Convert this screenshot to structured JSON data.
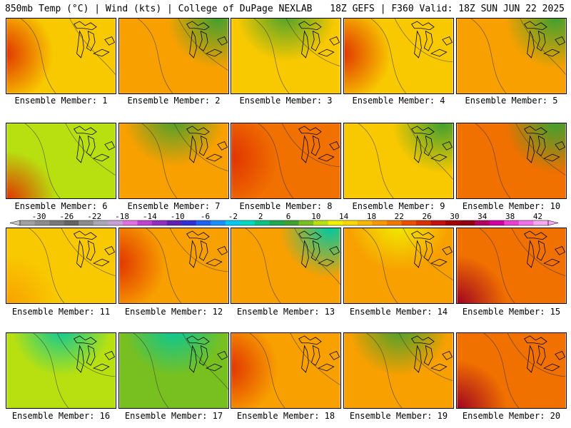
{
  "header": {
    "left": "850mb Temp (°C) | Wind (kts) | College of DuPage NEXLAB",
    "right": "18Z GEFS | F360 Valid: 18Z SUN JUN 22 2025"
  },
  "panels": [
    {
      "label": "Ensemble Member: 1",
      "dominant": "yellow-orange",
      "accent": "red-west"
    },
    {
      "label": "Ensemble Member: 2",
      "dominant": "orange",
      "accent": "green-northeast"
    },
    {
      "label": "Ensemble Member: 3",
      "dominant": "yellow-orange",
      "accent": "green-north"
    },
    {
      "label": "Ensemble Member: 4",
      "dominant": "yellow-orange",
      "accent": "red-west"
    },
    {
      "label": "Ensemble Member: 5",
      "dominant": "orange",
      "accent": "green-northeast"
    },
    {
      "label": "Ensemble Member: 6",
      "dominant": "yellow-green",
      "accent": "red-southwest"
    },
    {
      "label": "Ensemble Member: 7",
      "dominant": "orange",
      "accent": "green-north"
    },
    {
      "label": "Ensemble Member: 8",
      "dominant": "orange-red",
      "accent": "red-west"
    },
    {
      "label": "Ensemble Member: 9",
      "dominant": "yellow-orange",
      "accent": "green-northeast"
    },
    {
      "label": "Ensemble Member: 10",
      "dominant": "orange-red",
      "accent": "green-northeast"
    },
    {
      "label": "Ensemble Member: 11",
      "dominant": "yellow-orange",
      "accent": "orange-southwest"
    },
    {
      "label": "Ensemble Member: 12",
      "dominant": "orange",
      "accent": "red-west"
    },
    {
      "label": "Ensemble Member: 13",
      "dominant": "orange",
      "accent": "teal-northeast"
    },
    {
      "label": "Ensemble Member: 14",
      "dominant": "orange",
      "accent": "yellow-north"
    },
    {
      "label": "Ensemble Member: 15",
      "dominant": "orange-red",
      "accent": "maroon-southwest"
    },
    {
      "label": "Ensemble Member: 16",
      "dominant": "yellow-green",
      "accent": "teal-north"
    },
    {
      "label": "Ensemble Member: 17",
      "dominant": "green-yellow",
      "accent": "teal-north"
    },
    {
      "label": "Ensemble Member: 18",
      "dominant": "orange",
      "accent": "red-west"
    },
    {
      "label": "Ensemble Member: 19",
      "dominant": "orange",
      "accent": "green-north"
    },
    {
      "label": "Ensemble Member: 20",
      "dominant": "orange-red",
      "accent": "maroon-southwest"
    }
  ],
  "colorbar": {
    "ticks": [
      "-30",
      "-26",
      "-22",
      "-18",
      "-14",
      "-10",
      "-6",
      "-2",
      "2",
      "6",
      "10",
      "14",
      "18",
      "22",
      "26",
      "30",
      "34",
      "38",
      "42"
    ],
    "colors": [
      "#a0a0a0",
      "#8c8c8c",
      "#787878",
      "#646464",
      "#8c8c8c",
      "#a8a8b8",
      "#c8a0d8",
      "#e070e0",
      "#c040d0",
      "#9030c0",
      "#6020b0",
      "#3030d0",
      "#2060f0",
      "#1890f8",
      "#00c8f0",
      "#00d8c0",
      "#10c080",
      "#20a850",
      "#40a030",
      "#78c020",
      "#b8e010",
      "#f0f000",
      "#f8d800",
      "#f8b800",
      "#f89800",
      "#f07800",
      "#e85000",
      "#d83000",
      "#c01010",
      "#a00008",
      "#900010",
      "#b00060",
      "#d000a0",
      "#e840d0",
      "#f070e8",
      "#f8a8f0"
    ]
  }
}
